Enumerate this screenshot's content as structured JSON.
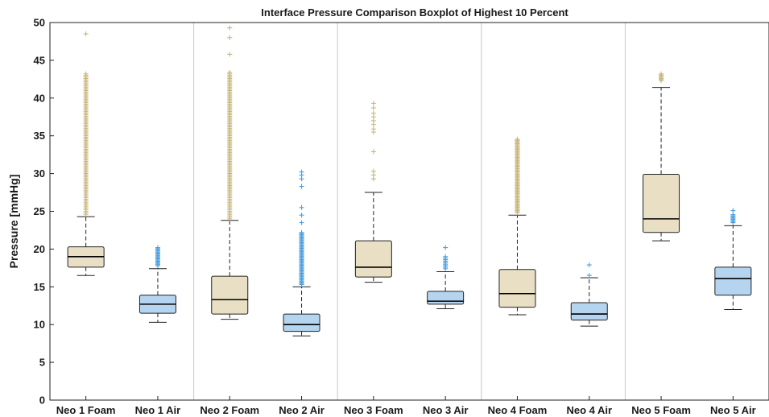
{
  "chart_data": {
    "type": "boxplot",
    "title": "Interface Pressure Comparison Boxplot of Highest 10 Percent",
    "xlabel": "",
    "ylabel": "Pressure [mmHg]",
    "ylim": [
      0,
      50
    ],
    "yticks": [
      0,
      5,
      10,
      15,
      20,
      25,
      30,
      35,
      40,
      45,
      50
    ],
    "grid": "vertical separators between pairs",
    "categories": [
      "Neo 1 Foam",
      "Neo 1 Air",
      "Neo 2 Foam",
      "Neo 2 Air",
      "Neo 3 Foam",
      "Neo 3 Air",
      "Neo 4 Foam",
      "Neo 4 Air",
      "Neo 5 Foam",
      "Neo 5 Air"
    ],
    "colors": {
      "foam_fill": "#e8dfc4",
      "air_fill": "#b4d4f0",
      "foam_outlier": "#c9b67c",
      "air_outlier": "#4a9fe0",
      "median": "#000000",
      "separator": "#c8c8c8"
    },
    "boxes": [
      {
        "category": "Neo 1 Foam",
        "material": "foam",
        "whisker_low": 16.5,
        "q1": 17.6,
        "median": 19.0,
        "q3": 20.3,
        "whisker_high": 24.3,
        "outliers": {
          "from": 24.6,
          "to": 43.3,
          "step": 0.2,
          "extra": [
            48.5
          ]
        }
      },
      {
        "category": "Neo 1 Air",
        "material": "air",
        "whisker_low": 10.3,
        "q1": 11.5,
        "median": 12.7,
        "q3": 13.9,
        "whisker_high": 17.4,
        "outliers": {
          "from": 17.8,
          "to": 20.2,
          "step": 0.15,
          "extra": []
        }
      },
      {
        "category": "Neo 2 Foam",
        "material": "foam",
        "whisker_low": 10.7,
        "q1": 11.4,
        "median": 13.3,
        "q3": 16.4,
        "whisker_high": 23.8,
        "outliers": {
          "from": 24.0,
          "to": 43.5,
          "step": 0.2,
          "extra": [
            45.8,
            48.0,
            49.3
          ]
        }
      },
      {
        "category": "Neo 2 Air",
        "material": "air",
        "whisker_low": 8.5,
        "q1": 9.1,
        "median": 10.0,
        "q3": 11.4,
        "whisker_high": 15.0,
        "outliers": {
          "from": 15.3,
          "to": 22.2,
          "step": 0.15,
          "extra": [
            23.5,
            24.5,
            25.5,
            28.3,
            29.3,
            29.8,
            30.2
          ]
        }
      },
      {
        "category": "Neo 3 Foam",
        "material": "foam",
        "whisker_low": 15.6,
        "q1": 16.3,
        "median": 17.6,
        "q3": 21.1,
        "whisker_high": 27.5,
        "outliers": {
          "from": 0,
          "to": 0,
          "step": 0,
          "extra": [
            29.3,
            29.8,
            30.3,
            32.9,
            35.5,
            35.9,
            36.5,
            37.0,
            37.5,
            38.0,
            38.7,
            39.3
          ]
        }
      },
      {
        "category": "Neo 3 Air",
        "material": "air",
        "whisker_low": 12.1,
        "q1": 12.7,
        "median": 13.1,
        "q3": 14.4,
        "whisker_high": 17.0,
        "outliers": {
          "from": 17.4,
          "to": 19.0,
          "step": 0.2,
          "extra": [
            20.2
          ]
        }
      },
      {
        "category": "Neo 4 Foam",
        "material": "foam",
        "whisker_low": 11.3,
        "q1": 12.3,
        "median": 14.1,
        "q3": 17.3,
        "whisker_high": 24.5,
        "outliers": {
          "from": 24.8,
          "to": 34.6,
          "step": 0.15,
          "extra": []
        }
      },
      {
        "category": "Neo 4 Air",
        "material": "air",
        "whisker_low": 9.8,
        "q1": 10.6,
        "median": 11.4,
        "q3": 12.9,
        "whisker_high": 16.2,
        "outliers": {
          "from": 0,
          "to": 0,
          "step": 0,
          "extra": [
            16.5,
            17.9
          ]
        }
      },
      {
        "category": "Neo 5 Foam",
        "material": "foam",
        "whisker_low": 21.1,
        "q1": 22.2,
        "median": 24.0,
        "q3": 29.9,
        "whisker_high": 41.4,
        "outliers": {
          "from": 42.3,
          "to": 43.3,
          "step": 0.15,
          "extra": []
        }
      },
      {
        "category": "Neo 5 Air",
        "material": "air",
        "whisker_low": 12.0,
        "q1": 13.9,
        "median": 16.1,
        "q3": 17.6,
        "whisker_high": 23.1,
        "outliers": {
          "from": 23.5,
          "to": 24.6,
          "step": 0.15,
          "extra": [
            25.1
          ]
        }
      }
    ]
  }
}
